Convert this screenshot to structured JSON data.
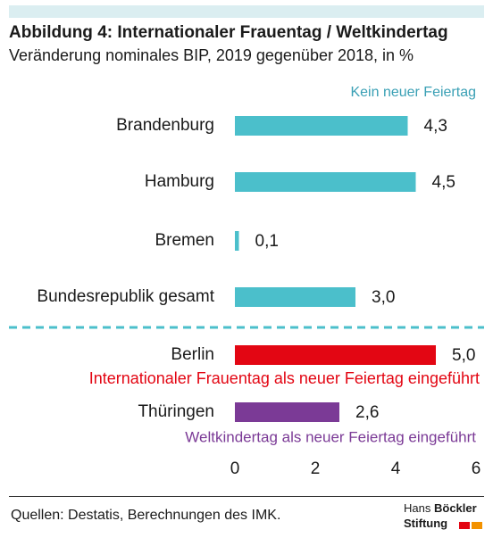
{
  "header": {
    "title": "Abbildung 4: Internationaler Frauentag / Weltkindertag",
    "subtitle": "Veränderung nominales BIP, 2019 gegenüber 2018, in %"
  },
  "chart_data": {
    "type": "bar",
    "orientation": "horizontal",
    "categories": [
      "Brandenburg",
      "Hamburg",
      "Bremen",
      "Bundesrepublik gesamt",
      "Berlin",
      "Thüringen"
    ],
    "values": [
      4.3,
      4.5,
      0.1,
      3.0,
      5.0,
      2.6
    ],
    "value_labels": [
      "4,3",
      "4,5",
      "0,1",
      "3,0",
      "5,0",
      "2,6"
    ],
    "colors": [
      "#4bbfcb",
      "#4bbfcb",
      "#4bbfcb",
      "#4bbfcb",
      "#e30613",
      "#7b3a96"
    ],
    "xlim": [
      0,
      6
    ],
    "xticks": [
      0,
      2,
      4,
      6
    ],
    "xtick_labels": [
      "0",
      "2",
      "4",
      "6"
    ],
    "grid": false,
    "annotations": [
      {
        "text": "Kein neuer Feiertag",
        "color": "#3aa0b5"
      },
      {
        "text": "Internationaler Frauentag als neuer Feiertag eingeführt",
        "color": "#e30613"
      },
      {
        "text": "Weltkindertag als neuer Feiertag eingeführt",
        "color": "#7b3a96"
      }
    ],
    "separator": {
      "after_category": "Bundesrepublik gesamt",
      "style": "dashed",
      "color": "#4bbfcb"
    }
  },
  "footer": {
    "source": "Quellen: Destatis, Berechnungen des IMK.",
    "logo_line1_regular": "Hans",
    "logo_line1_bold": "Böckler",
    "logo_line2": "Stiftung",
    "logo_colors": [
      "#e30613",
      "#f39200"
    ]
  }
}
